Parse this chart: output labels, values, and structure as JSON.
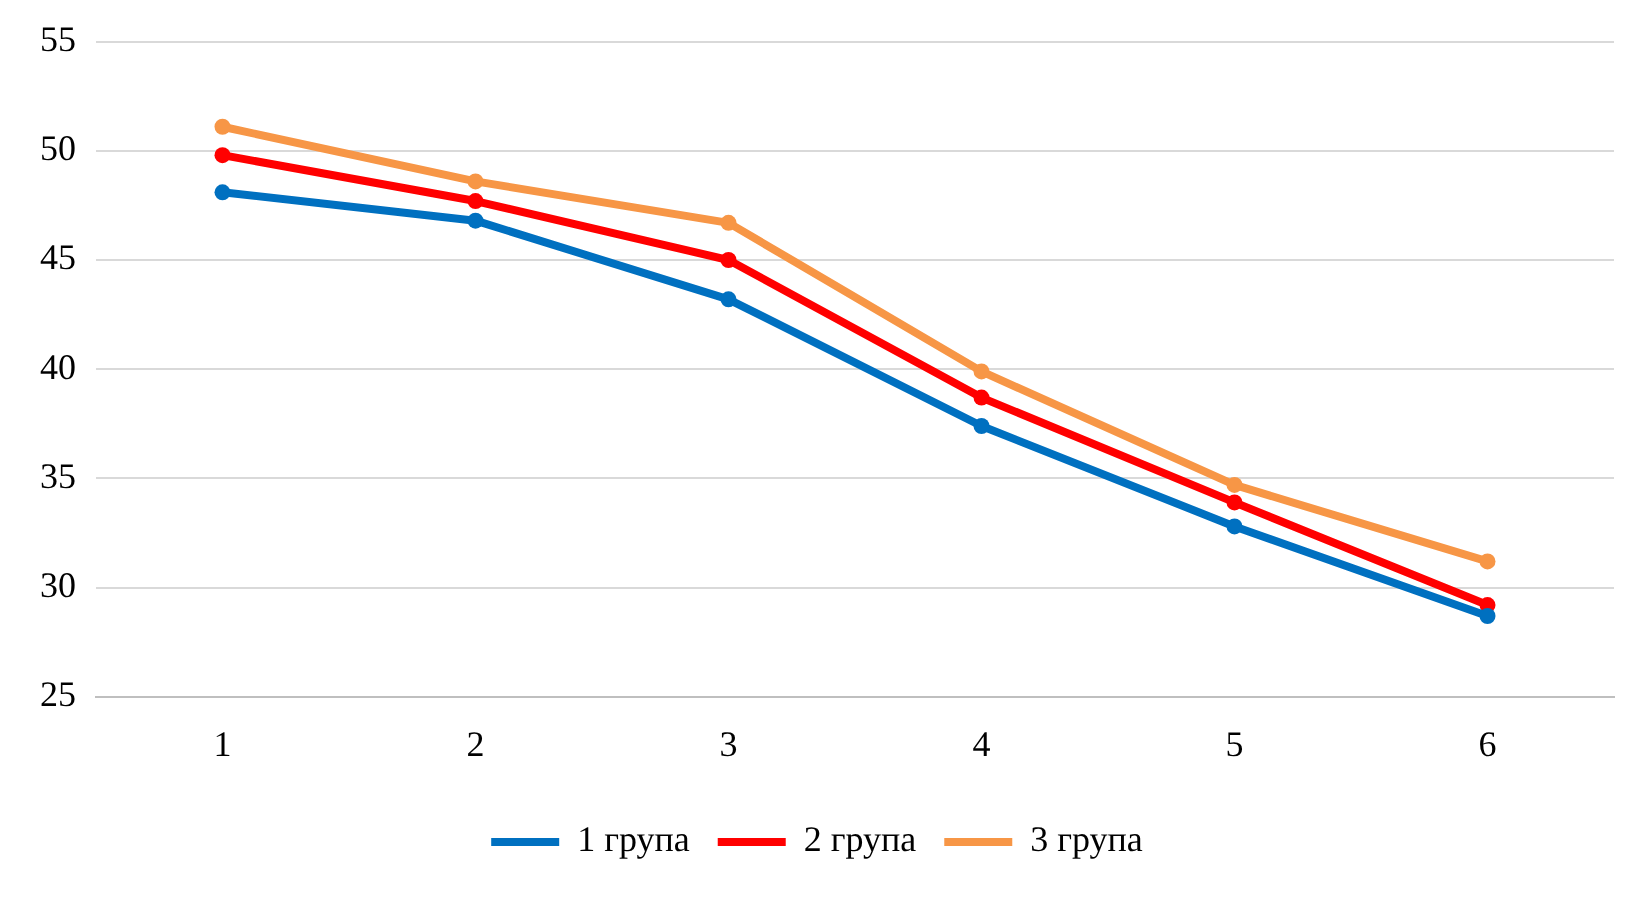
{
  "chart_data": {
    "type": "line",
    "categories": [
      "1",
      "2",
      "3",
      "4",
      "5",
      "6"
    ],
    "series": [
      {
        "name": "1 група",
        "color": "#0070c0",
        "values": [
          48.1,
          46.8,
          43.2,
          37.4,
          32.8,
          28.7
        ]
      },
      {
        "name": "2 група",
        "color": "#ff0000",
        "values": [
          49.8,
          47.7,
          45.0,
          38.7,
          33.9,
          29.2
        ]
      },
      {
        "name": "3 група",
        "color": "#f79646",
        "values": [
          51.1,
          48.6,
          46.7,
          39.9,
          34.7,
          31.2
        ]
      }
    ],
    "ylim": [
      25,
      55
    ],
    "yticks": [
      25,
      30,
      35,
      40,
      45,
      50,
      55
    ],
    "grid": "y",
    "legend": "bottom",
    "marker": "circle",
    "line_style": "solid"
  }
}
